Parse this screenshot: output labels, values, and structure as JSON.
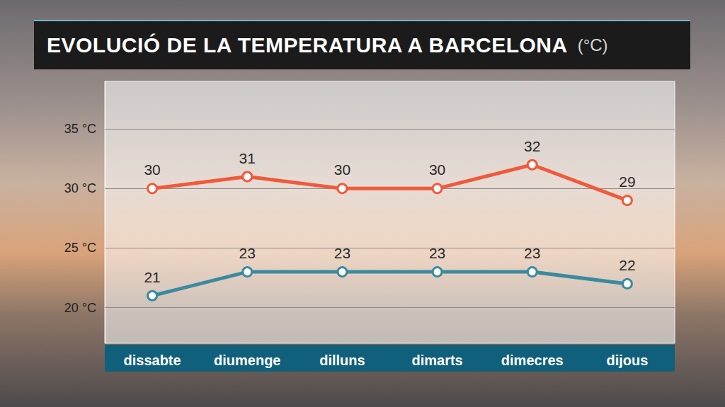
{
  "chart_data": {
    "type": "line",
    "title": "EVOLUCIÓ DE LA TEMPERATURA A BARCELONA",
    "subtitle": "(°C)",
    "categories": [
      "dissabte",
      "diumenge",
      "dilluns",
      "dimarts",
      "dimecres",
      "dijous"
    ],
    "series": [
      {
        "color": "#f05a3c",
        "values": [
          30,
          31,
          30,
          30,
          32,
          29
        ]
      },
      {
        "color": "#3a8aa0",
        "values": [
          21,
          23,
          23,
          23,
          23,
          22
        ]
      }
    ],
    "ylim": [
      17,
      39
    ],
    "yticks": [
      {
        "value": 20,
        "label": "20 °C"
      },
      {
        "value": 25,
        "label": "25 °C"
      },
      {
        "value": 30,
        "label": "30 °C"
      },
      {
        "value": 35,
        "label": "35 °C"
      }
    ],
    "grid": true,
    "data_labels": true,
    "marker": "circle"
  }
}
